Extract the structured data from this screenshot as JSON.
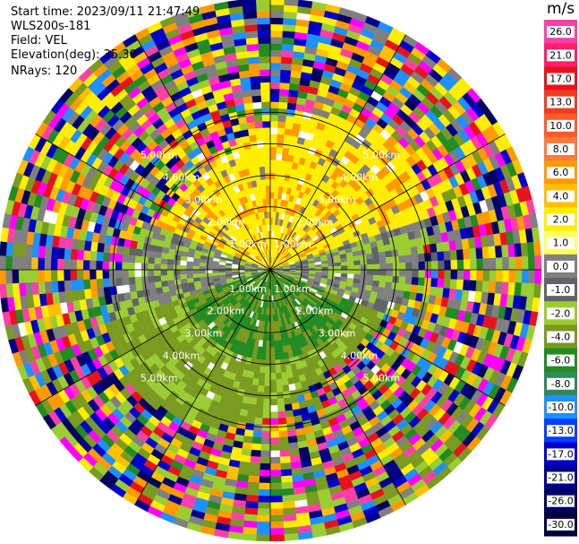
{
  "header": {
    "lines": [
      "Start time: 2023/09/11 21:47:49",
      "WLS200s-181",
      "Field: VEL",
      "Elevation(deg): 35.30",
      "NRays: 120"
    ]
  },
  "chart_data": {
    "type": "heatmap",
    "projection": "polar-ppi",
    "field": "VEL",
    "station": "WLS200s-181",
    "start_time": "2023/09/11 21:47:49",
    "elevation_deg": 35.3,
    "nrays": 120,
    "range_rings_km": [
      1.0,
      2.0,
      3.0,
      4.0,
      5.0
    ],
    "ring_labels": [
      "1.00km",
      "2.00km",
      "3.00km",
      "4.00km",
      "5.00km"
    ],
    "colorbar": {
      "unit": "m/s",
      "ticks": [
        "26.0",
        "21.0",
        "17.0",
        "13.0",
        "10.0",
        "8.0",
        "6.0",
        "4.0",
        "2.0",
        "1.0",
        "0.0",
        "-1.0",
        "-2.0",
        "-4.0",
        "-6.0",
        "-8.0",
        "-10.0",
        "-13.0",
        "-17.0",
        "-21.0",
        "-26.0",
        "-30.0"
      ],
      "colors": [
        "#ff3fa8",
        "#ff1f6e",
        "#e8121c",
        "#f03c1e",
        "#ff5a28",
        "#ff7a3c",
        "#ff9a00",
        "#ffc000",
        "#ffee00",
        "#ffff60",
        "#808080",
        "#606468",
        "#9acd32",
        "#7a9a20",
        "#228b22",
        "#2e8b57",
        "#1e90ff",
        "#0040ff",
        "#0000cd",
        "#00008b",
        "#000060",
        "#000040"
      ]
    }
  }
}
